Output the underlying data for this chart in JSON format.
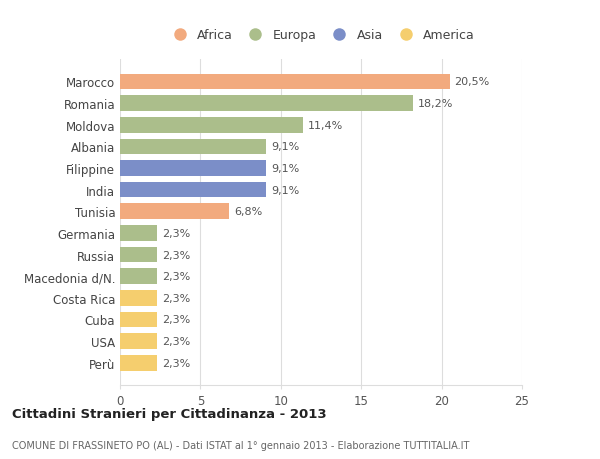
{
  "categories": [
    "Marocco",
    "Romania",
    "Moldova",
    "Albania",
    "Filippine",
    "India",
    "Tunisia",
    "Germania",
    "Russia",
    "Macedonia d/N.",
    "Costa Rica",
    "Cuba",
    "USA",
    "Perù"
  ],
  "values": [
    20.5,
    18.2,
    11.4,
    9.1,
    9.1,
    9.1,
    6.8,
    2.3,
    2.3,
    2.3,
    2.3,
    2.3,
    2.3,
    2.3
  ],
  "labels": [
    "20,5%",
    "18,2%",
    "11,4%",
    "9,1%",
    "9,1%",
    "9,1%",
    "6,8%",
    "2,3%",
    "2,3%",
    "2,3%",
    "2,3%",
    "2,3%",
    "2,3%",
    "2,3%"
  ],
  "colors": [
    "#F2AA7E",
    "#ABBE8B",
    "#ABBE8B",
    "#ABBE8B",
    "#7B8EC8",
    "#7B8EC8",
    "#F2AA7E",
    "#ABBE8B",
    "#ABBE8B",
    "#ABBE8B",
    "#F5CE6E",
    "#F5CE6E",
    "#F5CE6E",
    "#F5CE6E"
  ],
  "legend": {
    "Africa": "#F2AA7E",
    "Europa": "#ABBE8B",
    "Asia": "#7B8EC8",
    "America": "#F5CE6E"
  },
  "xlim": [
    0,
    25
  ],
  "xticks": [
    0,
    5,
    10,
    15,
    20,
    25
  ],
  "title": "Cittadini Stranieri per Cittadinanza - 2013",
  "subtitle": "COMUNE DI FRASSINETO PO (AL) - Dati ISTAT al 1° gennaio 2013 - Elaborazione TUTTITALIA.IT",
  "background_color": "#ffffff",
  "grid_color": "#dddddd",
  "bar_height": 0.72
}
